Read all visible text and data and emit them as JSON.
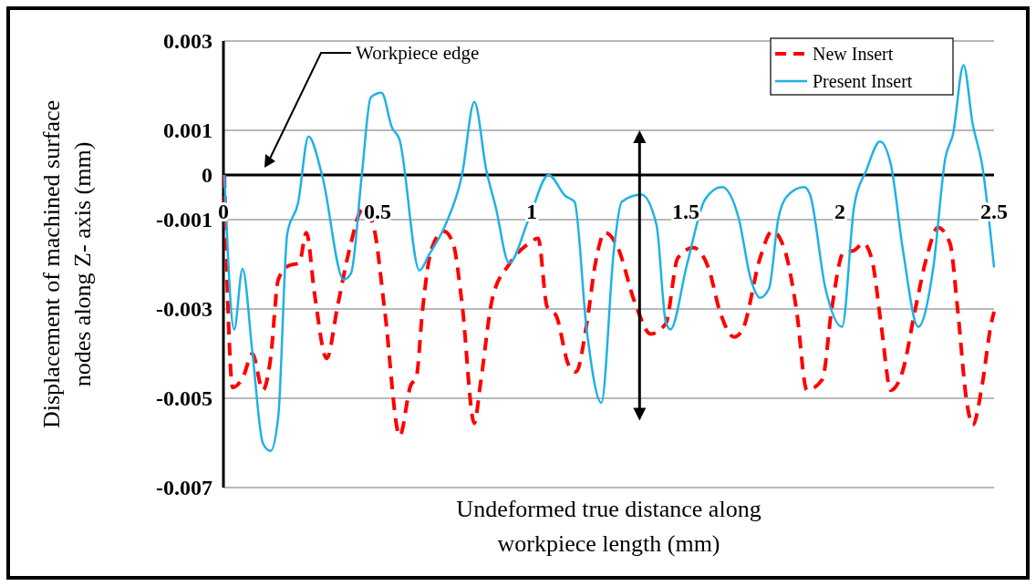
{
  "chart_data": {
    "type": "line",
    "xlabel": "Undeformed true distance along\nworkpiece length (mm)",
    "ylabel": "Displacement of machined surface\nnodes along Z- axis (mm)",
    "xlim": [
      0,
      2.5
    ],
    "xticks": [
      0,
      0.5,
      1,
      1.5,
      2,
      2.5
    ],
    "ylim": [
      -0.007,
      0.003
    ],
    "yticks": [
      0.003,
      0.001,
      0,
      -0.001,
      -0.003,
      -0.005,
      -0.007
    ],
    "grid": "y",
    "legend": "top right",
    "annotations": [
      "Workpiece edge"
    ],
    "series": [
      {
        "name": "New Insert",
        "color": "#ff0000",
        "line_style": "dashed",
        "x": [
          0.003,
          0.015,
          0.03,
          0.064,
          0.094,
          0.128,
          0.153,
          0.178,
          0.212,
          0.246,
          0.269,
          0.296,
          0.335,
          0.37,
          0.409,
          0.454,
          0.488,
          0.523,
          0.572,
          0.607,
          0.626,
          0.646,
          0.675,
          0.715,
          0.745,
          0.774,
          0.814,
          0.833,
          0.873,
          0.927,
          0.991,
          1.021,
          1.05,
          1.08,
          1.119,
          1.144,
          1.178,
          1.208,
          1.238,
          1.277,
          1.336,
          1.386,
          1.435,
          1.474,
          1.524,
          1.573,
          1.612,
          1.657,
          1.686,
          1.741,
          1.78,
          1.82,
          1.859,
          1.893,
          1.943,
          1.973,
          2.012,
          2.046,
          2.076,
          2.105,
          2.135,
          2.165,
          2.204,
          2.244,
          2.283,
          2.318,
          2.357,
          2.382,
          2.411,
          2.431,
          2.461,
          2.49,
          2.5
        ],
        "values": [
          0,
          -0.00302,
          -0.00476,
          -0.00452,
          -0.004,
          -0.00482,
          -0.00411,
          -0.00234,
          -0.00203,
          -0.00197,
          -0.00129,
          -0.00268,
          -0.00411,
          -0.00295,
          -0.00166,
          -0.00074,
          -0.00118,
          -0.00302,
          -0.00584,
          -0.00472,
          -0.00452,
          -0.00302,
          -0.00166,
          -0.00126,
          -0.00153,
          -0.00288,
          -0.00556,
          -0.00472,
          -0.00275,
          -0.002,
          -0.00153,
          -0.00142,
          -0.00295,
          -0.00316,
          -0.00424,
          -0.00441,
          -0.00336,
          -0.00193,
          -0.00129,
          -0.00159,
          -0.00288,
          -0.00356,
          -0.00333,
          -0.00186,
          -0.00163,
          -0.00207,
          -0.00309,
          -0.00363,
          -0.00343,
          -0.00186,
          -0.00126,
          -0.00166,
          -0.00302,
          -0.00482,
          -0.00458,
          -0.00302,
          -0.00173,
          -0.00169,
          -0.00153,
          -0.00193,
          -0.00343,
          -0.00482,
          -0.00438,
          -0.00302,
          -0.0018,
          -0.00118,
          -0.00153,
          -0.00302,
          -0.00506,
          -0.0056,
          -0.00472,
          -0.00336,
          -0.00306
        ]
      },
      {
        "name": "Present Insert",
        "color": "#1fb1e6",
        "line_style": "solid",
        "x": [
          0.003,
          0.035,
          0.062,
          0.094,
          0.128,
          0.153,
          0.178,
          0.207,
          0.242,
          0.276,
          0.32,
          0.39,
          0.414,
          0.449,
          0.478,
          0.513,
          0.547,
          0.571,
          0.636,
          0.666,
          0.72,
          0.774,
          0.814,
          0.853,
          0.883,
          0.927,
          0.991,
          1.055,
          1.109,
          1.139,
          1.178,
          1.226,
          1.267,
          1.292,
          1.356,
          1.405,
          1.435,
          1.45,
          1.504,
          1.563,
          1.617,
          1.672,
          1.711,
          1.741,
          1.77,
          1.8,
          1.829,
          1.884,
          1.903,
          1.953,
          2.007,
          2.046,
          2.086,
          2.13,
          2.165,
          2.204,
          2.254,
          2.303,
          2.342,
          2.367,
          2.401,
          2.431,
          2.461,
          2.5
        ],
        "values": [
          0,
          -0.00346,
          -0.0021,
          -0.00397,
          -0.00601,
          -0.00618,
          -0.0054,
          -0.00132,
          -0.00063,
          0.00086,
          0,
          -0.00234,
          -0.0022,
          0,
          0.00174,
          0.00184,
          0.00106,
          0.0008,
          -0.00214,
          -0.0018,
          -0.00112,
          0,
          0.00164,
          0.0001,
          -0.00071,
          -0.00197,
          -0.00098,
          0,
          -0.00047,
          -0.0006,
          -0.00343,
          -0.0051,
          -0.00166,
          -0.0006,
          -0.00044,
          -0.00112,
          -0.00329,
          -0.00346,
          -0.002,
          -0.00054,
          -0.00027,
          -0.00098,
          -0.00234,
          -0.00275,
          -0.00254,
          -0.00098,
          -0.00047,
          -0.00027,
          -0.00044,
          -0.00254,
          -0.0034,
          -0.00071,
          0.00011,
          0.00075,
          0.00024,
          -0.00166,
          -0.0034,
          -0.00207,
          0.00038,
          0.00092,
          0.00246,
          0.00113,
          0.00024,
          -0.00207
        ]
      }
    ]
  }
}
